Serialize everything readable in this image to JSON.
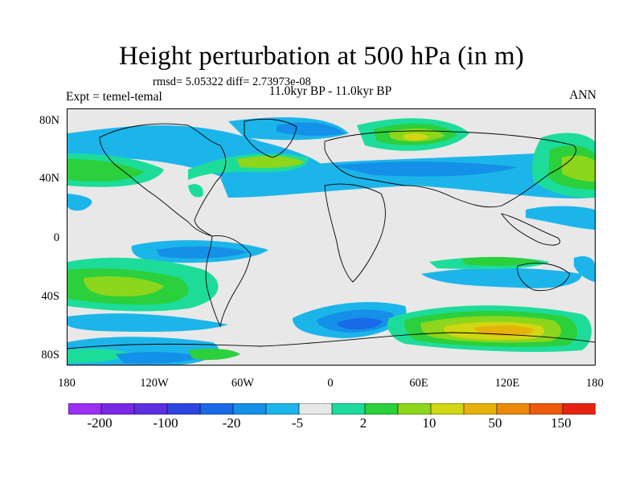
{
  "title": "Height perturbation at 500 hPa (in m)",
  "stats": "rmsd= 5.05322 diff= 2.73973e-08",
  "period": "11.0kyr BP - 11.0kyr BP",
  "expt": "Expt = temel-temal",
  "season": "ANN",
  "y_ticks": [
    "80N",
    "40N",
    "0",
    "40S",
    "80S"
  ],
  "x_ticks": [
    "180",
    "120W",
    "60W",
    "0",
    "60E",
    "120E",
    "180"
  ],
  "colorbar": {
    "labels": [
      "-200",
      "-100",
      "-20",
      "-5",
      "2",
      "10",
      "50",
      "150"
    ],
    "colors": [
      "#9b30f2",
      "#7a28e6",
      "#5d2fe0",
      "#2f45e0",
      "#1a69e6",
      "#1490e8",
      "#1cb5ea",
      "#e8e8e8",
      "#1ddc9a",
      "#2ccf3c",
      "#8cd61c",
      "#d2d613",
      "#e6b20a",
      "#eb8a0a",
      "#ee5a0c",
      "#e82210"
    ]
  },
  "map_colors": {
    "background": "#e8e8e8",
    "neg_light": "#1cb5ea",
    "neg_mid": "#1490e8",
    "neg_dark": "#1a69e6",
    "pos_light": "#1ddc9a",
    "pos_mid": "#2ccf3c",
    "pos_yg": "#8cd61c",
    "pos_yellow": "#d2d613",
    "pos_orange": "#e6b20a"
  }
}
